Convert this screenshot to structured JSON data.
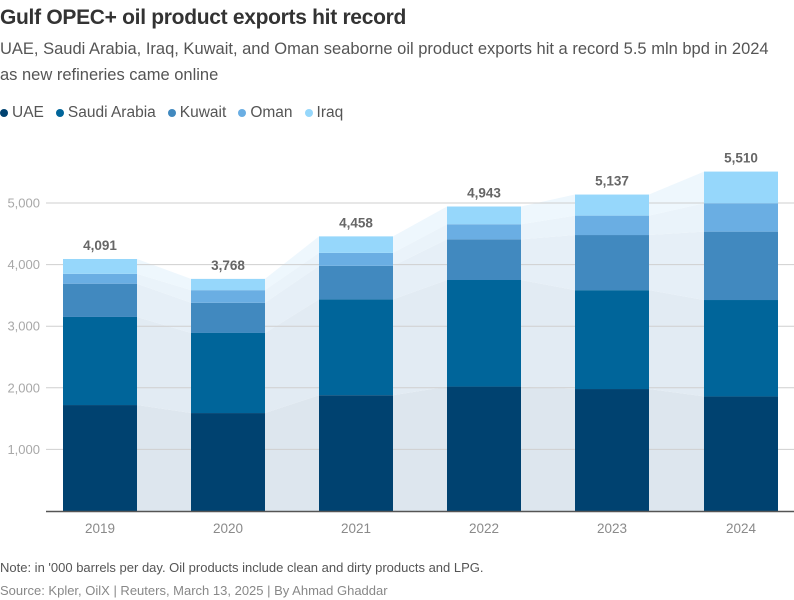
{
  "header": {
    "title": "Gulf OPEC+ oil product exports hit record",
    "subtitle": "UAE, Saudi Arabia, Iraq, Kuwait, and Oman seaborne oil product exports hit a record 5.5 mln bpd in 2024 as new refineries came online"
  },
  "legend": [
    {
      "label": "UAE",
      "color": "#004270"
    },
    {
      "label": "Saudi Arabia",
      "color": "#00659a"
    },
    {
      "label": "Kuwait",
      "color": "#4189bf"
    },
    {
      "label": "Oman",
      "color": "#6aaee3"
    },
    {
      "label": "Iraq",
      "color": "#96d7fb"
    }
  ],
  "chart_data": {
    "type": "bar",
    "stacked": true,
    "title": "Gulf OPEC+ oil product exports hit record",
    "xlabel": "",
    "ylabel": "'000 barrels per day",
    "categories": [
      "2019",
      "2020",
      "2021",
      "2022",
      "2023",
      "2024"
    ],
    "series": [
      {
        "name": "UAE",
        "color": "#004270",
        "values": [
          1720,
          1590,
          1880,
          2020,
          1980,
          1860
        ]
      },
      {
        "name": "Saudi Arabia",
        "color": "#00659a",
        "values": [
          1430,
          1300,
          1555,
          1730,
          1605,
          1565
        ]
      },
      {
        "name": "Kuwait",
        "color": "#4189bf",
        "values": [
          540,
          490,
          545,
          660,
          895,
          1110
        ]
      },
      {
        "name": "Oman",
        "color": "#6aaee3",
        "values": [
          160,
          205,
          210,
          245,
          315,
          460
        ]
      },
      {
        "name": "Iraq",
        "color": "#96d7fb",
        "values": [
          241,
          183,
          268,
          288,
          342,
          515
        ]
      }
    ],
    "totals": [
      4091,
      3768,
      4458,
      4943,
      5137,
      5510
    ],
    "total_labels": [
      "4,091",
      "3,768",
      "4,458",
      "4,943",
      "5,137",
      "5,510"
    ],
    "yticks": [
      1000,
      2000,
      3000,
      4000,
      5000
    ],
    "ytick_labels": [
      "1,000",
      "2,000",
      "3,000",
      "4,000",
      "5,000"
    ],
    "ylim": [
      0,
      5500
    ],
    "grid": true,
    "legend_position": "top-left"
  },
  "footer": {
    "note": "Note: in '000 barrels per day. Oil products include clean and dirty products and LPG.",
    "source": "Source: Kpler, OilX | Reuters, March 13, 2025 | By Ahmad Ghaddar"
  }
}
